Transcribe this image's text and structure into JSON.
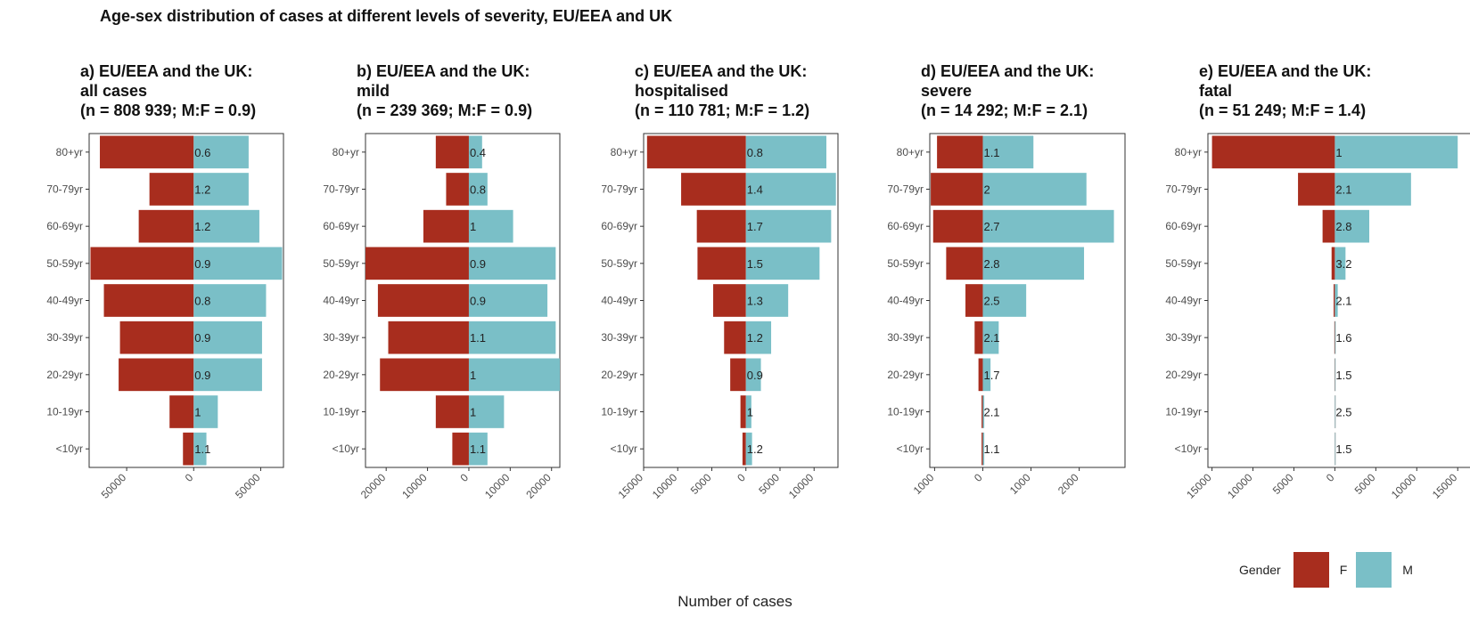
{
  "title": "Age-sex distribution of cases at different levels of severity, EU/EEA and UK",
  "xlabel": "Number of cases",
  "legend": {
    "title": "Gender",
    "items": [
      {
        "label": "F",
        "color": "#A82D1E"
      },
      {
        "label": "M",
        "color": "#7ABFC7"
      }
    ]
  },
  "colors": {
    "female": "#A82D1E",
    "male": "#7ABFC7",
    "panel_border": "#333333",
    "axis_text": "#4D4D4D"
  },
  "chart_data": [
    {
      "type": "bar",
      "subtitle": [
        "a) EU/EEA and the UK:",
        "all cases",
        "(n = 808 939; M:F = 0.9)"
      ],
      "categories": [
        "80+yr",
        "70-79yr",
        "60-69yr",
        "50-59yr",
        "40-49yr",
        "30-39yr",
        "20-29yr",
        "10-19yr",
        "<10yr"
      ],
      "series": [
        {
          "name": "F",
          "values": [
            70000,
            33000,
            41000,
            77000,
            67000,
            55000,
            56000,
            18000,
            8000
          ]
        },
        {
          "name": "M",
          "values": [
            41000,
            41000,
            49000,
            66000,
            54000,
            51000,
            51000,
            18000,
            9500
          ]
        }
      ],
      "ratio_labels": [
        "0.6",
        "1.2",
        "1.2",
        "0.9",
        "0.8",
        "0.9",
        "0.9",
        "1",
        "1.1"
      ],
      "xlim": [
        -78000,
        67000
      ],
      "xticks": [
        -50000,
        0,
        50000
      ],
      "xtick_labels": [
        "50000",
        "0",
        "50000"
      ]
    },
    {
      "type": "bar",
      "subtitle": [
        "b) EU/EEA and the UK:",
        "mild",
        "(n = 239 369; M:F = 0.9)"
      ],
      "categories": [
        "80+yr",
        "70-79yr",
        "60-69yr",
        "50-59yr",
        "40-49yr",
        "30-39yr",
        "20-29yr",
        "10-19yr",
        "<10yr"
      ],
      "series": [
        {
          "name": "F",
          "values": [
            8000,
            5500,
            11000,
            25000,
            22000,
            19500,
            21500,
            8000,
            4000
          ]
        },
        {
          "name": "M",
          "values": [
            3200,
            4500,
            10700,
            21000,
            19000,
            21000,
            22000,
            8500,
            4500
          ]
        }
      ],
      "ratio_labels": [
        "0.4",
        "0.8",
        "1",
        "0.9",
        "0.9",
        "1.1",
        "1",
        "1",
        "1.1"
      ],
      "xlim": [
        -25000,
        22000
      ],
      "xticks": [
        -20000,
        -10000,
        0,
        10000,
        20000
      ],
      "xtick_labels": [
        "20000",
        "10000",
        "0",
        "10000",
        "20000"
      ]
    },
    {
      "type": "bar",
      "subtitle": [
        "c) EU/EEA and the UK:",
        "hospitalised",
        "(n = 110 781; M:F = 1.2)"
      ],
      "categories": [
        "80+yr",
        "70-79yr",
        "60-69yr",
        "50-59yr",
        "40-49yr",
        "30-39yr",
        "20-29yr",
        "10-19yr",
        "<10yr"
      ],
      "series": [
        {
          "name": "F",
          "values": [
            14500,
            9500,
            7200,
            7100,
            4800,
            3200,
            2300,
            800,
            500
          ]
        },
        {
          "name": "M",
          "values": [
            11800,
            13200,
            12500,
            10800,
            6200,
            3700,
            2200,
            800,
            900
          ]
        }
      ],
      "ratio_labels": [
        "0.8",
        "1.4",
        "1.7",
        "1.5",
        "1.3",
        "1.2",
        "0.9",
        "1",
        "1.2"
      ],
      "xlim": [
        -15000,
        13500
      ],
      "xticks": [
        -15000,
        -10000,
        -5000,
        0,
        5000,
        10000
      ],
      "xtick_labels": [
        "15000",
        "10000",
        "5000",
        "0",
        "5000",
        "10000"
      ]
    },
    {
      "type": "bar",
      "subtitle": [
        "d) EU/EEA and the UK:",
        "severe",
        "(n = 14 292; M:F = 2.1)"
      ],
      "categories": [
        "80+yr",
        "70-79yr",
        "60-69yr",
        "50-59yr",
        "40-49yr",
        "30-39yr",
        "20-29yr",
        "10-19yr",
        "<10yr"
      ],
      "series": [
        {
          "name": "F",
          "values": [
            950,
            1080,
            1030,
            760,
            360,
            170,
            90,
            25,
            25
          ]
        },
        {
          "name": "M",
          "values": [
            1050,
            2150,
            2720,
            2100,
            900,
            330,
            160,
            30,
            30
          ]
        }
      ],
      "ratio_labels": [
        "1.1",
        "2",
        "2.7",
        "2.8",
        "2.5",
        "2.1",
        "1.7",
        "2.1",
        "1.1"
      ],
      "xlim": [
        -1100,
        2950
      ],
      "xticks": [
        -1000,
        0,
        1000,
        2000
      ],
      "xtick_labels": [
        "1000",
        "0",
        "1000",
        "2000"
      ]
    },
    {
      "type": "bar",
      "subtitle": [
        "e) EU/EEA and the UK:",
        "fatal",
        "(n = 51 249; M:F = 1.4)"
      ],
      "categories": [
        "80+yr",
        "70-79yr",
        "60-69yr",
        "50-59yr",
        "40-49yr",
        "30-39yr",
        "20-29yr",
        "10-19yr",
        "<10yr"
      ],
      "series": [
        {
          "name": "F",
          "values": [
            15000,
            4500,
            1500,
            400,
            150,
            60,
            30,
            10,
            10
          ]
        },
        {
          "name": "M",
          "values": [
            15000,
            9300,
            4200,
            1300,
            350,
            100,
            50,
            25,
            15
          ]
        }
      ],
      "ratio_labels": [
        "1",
        "2.1",
        "2.8",
        "3.2",
        "2.1",
        "1.6",
        "1.5",
        "2.5",
        "1.5"
      ],
      "xlim": [
        -15500,
        16500
      ],
      "xticks": [
        -15000,
        -10000,
        -5000,
        0,
        5000,
        10000,
        15000
      ],
      "xtick_labels": [
        "15000",
        "10000",
        "5000",
        "0",
        "5000",
        "10000",
        "15000"
      ]
    }
  ]
}
